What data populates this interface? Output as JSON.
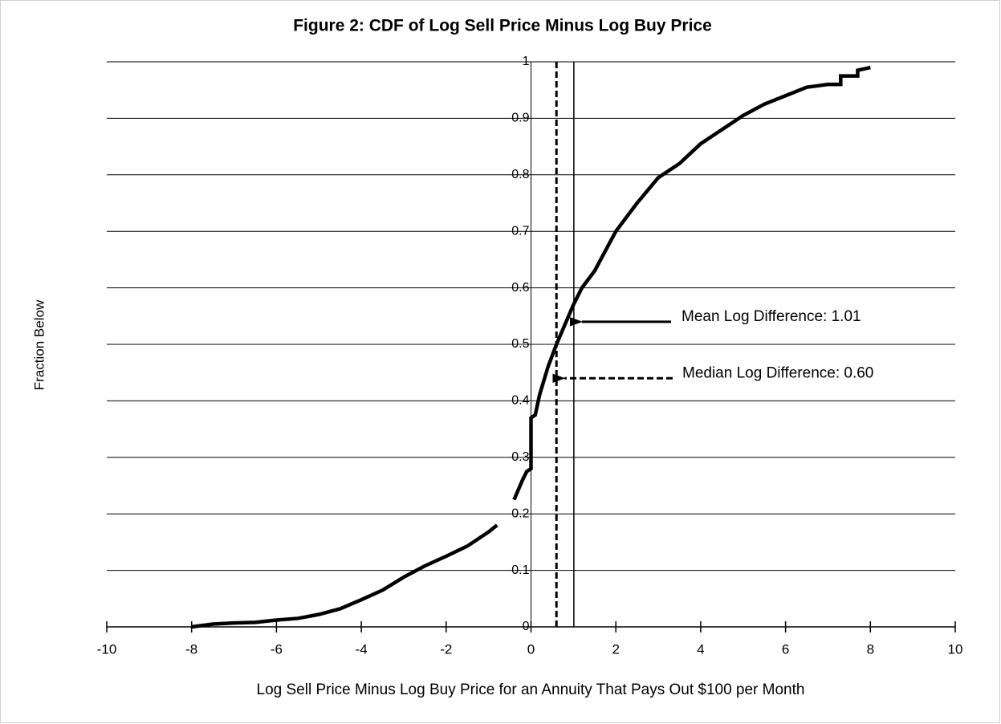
{
  "chart_data": {
    "type": "line",
    "title": "Figure 2: CDF of Log Sell Price Minus Log Buy Price",
    "xlabel": "Log Sell Price Minus Log Buy Price for an Annuity That Pays Out $100 per Month",
    "ylabel": "Fraction Below",
    "color": "#000000",
    "grid": true,
    "xlim": [
      -10,
      10
    ],
    "ylim": [
      0,
      1
    ],
    "xticks": [
      -10,
      -8,
      -6,
      -4,
      -2,
      0,
      2,
      4,
      6,
      8,
      10
    ],
    "yticks": [
      0,
      0.1,
      0.2,
      0.3,
      0.4,
      0.5,
      0.6,
      0.7,
      0.8,
      0.9,
      1
    ],
    "x": [
      -8.0,
      -7.5,
      -7.0,
      -6.5,
      -6.0,
      -5.5,
      -5.0,
      -4.5,
      -4.0,
      -3.5,
      -3.0,
      -2.5,
      -2.0,
      -1.5,
      -1.0,
      -0.8,
      -0.6,
      -0.4,
      -0.2,
      -0.1,
      0.0,
      0.0,
      0.1,
      0.2,
      0.4,
      0.6,
      0.8,
      1.0,
      1.2,
      1.5,
      2.0,
      2.5,
      3.0,
      3.5,
      4.0,
      4.5,
      5.0,
      5.5,
      6.0,
      6.5,
      7.0,
      7.3,
      7.3,
      7.7,
      7.7,
      8.0
    ],
    "values": [
      0.0,
      0.005,
      0.007,
      0.008,
      0.012,
      0.015,
      0.022,
      0.032,
      0.048,
      0.065,
      0.088,
      0.108,
      0.125,
      0.143,
      0.168,
      0.18,
      null,
      0.225,
      0.26,
      0.275,
      0.28,
      0.37,
      0.375,
      0.41,
      0.46,
      0.5,
      0.535,
      0.57,
      0.6,
      0.63,
      0.7,
      0.75,
      0.795,
      0.82,
      0.855,
      0.88,
      0.905,
      0.925,
      0.94,
      0.955,
      0.96,
      0.96,
      0.975,
      0.975,
      0.985,
      0.99
    ],
    "reference_lines": [
      {
        "x": 1.01,
        "style": "solid",
        "label": "Mean Log Difference: 1.01",
        "label_y": 0.54
      },
      {
        "x": 0.6,
        "style": "dashed",
        "label": "Median Log Difference: 0.60",
        "label_y": 0.44
      }
    ]
  }
}
